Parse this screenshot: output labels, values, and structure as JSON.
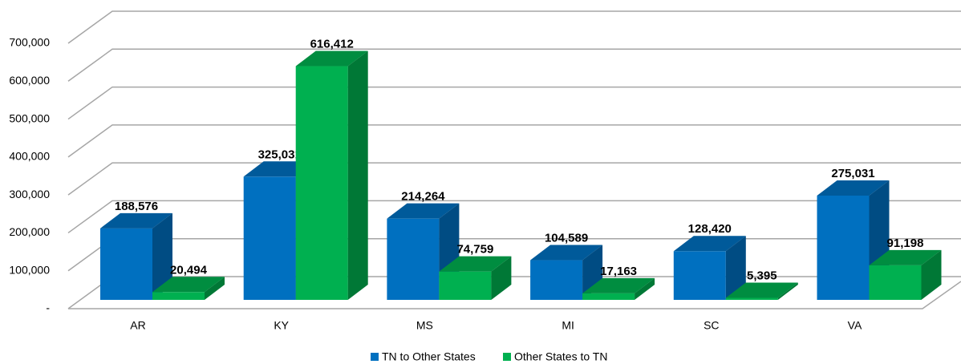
{
  "chart_data": {
    "type": "bar3d",
    "categories": [
      "AR",
      "KY",
      "MS",
      "MI",
      "SC",
      "VA"
    ],
    "series": [
      {
        "name": "TN to Other States",
        "color": "#0070c0",
        "values": [
          188576,
          325031,
          214264,
          104589,
          128420,
          275031
        ],
        "value_labels": [
          "188,576",
          "325,031",
          "214,264",
          "104,589",
          "128,420",
          "275,031"
        ]
      },
      {
        "name": "Other States to TN",
        "color": "#00b050",
        "values": [
          20494,
          616412,
          74759,
          17163,
          5395,
          91198
        ],
        "value_labels": [
          "20,494",
          "616,412",
          "74,759",
          "17,163",
          "5,395",
          "91,198"
        ]
      }
    ],
    "ylim": [
      0,
      700000
    ],
    "yticks": [
      {
        "value": 0,
        "label": "-"
      },
      {
        "value": 100000,
        "label": "100,000"
      },
      {
        "value": 200000,
        "label": "200,000"
      },
      {
        "value": 300000,
        "label": "300,000"
      },
      {
        "value": 400000,
        "label": "400,000"
      },
      {
        "value": 500000,
        "label": "500,000"
      },
      {
        "value": 600000,
        "label": "600,000"
      },
      {
        "value": 700000,
        "label": "700,000"
      }
    ],
    "grid": true,
    "legend": "bottom"
  }
}
